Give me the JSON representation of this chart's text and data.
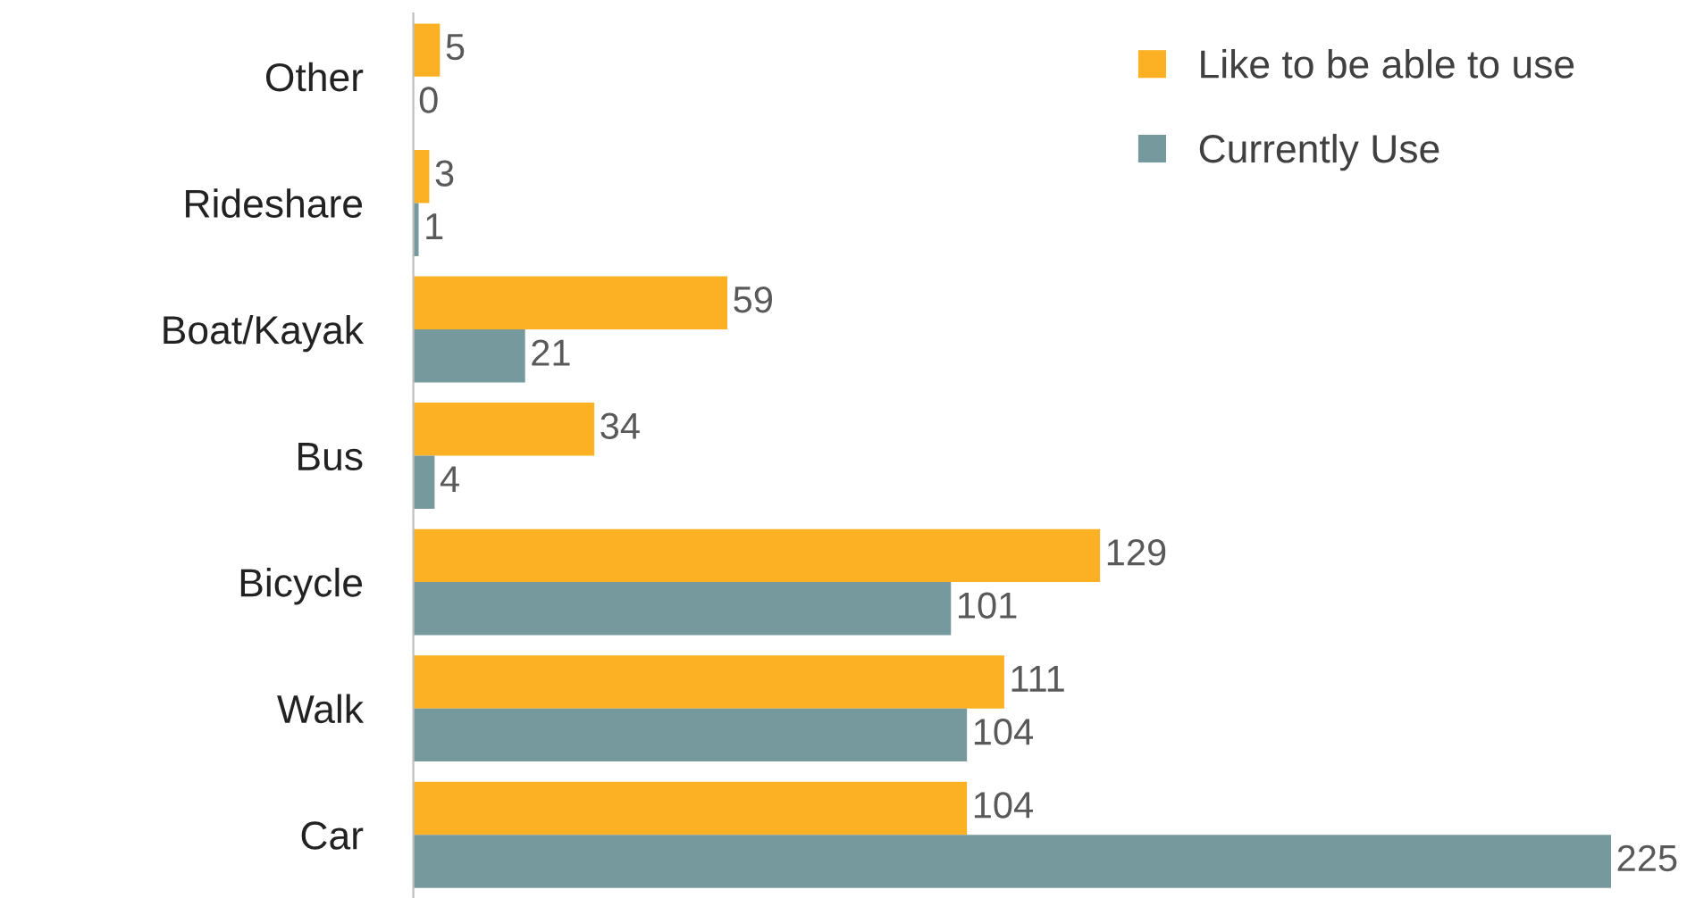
{
  "chart_data": {
    "type": "bar",
    "orientation": "horizontal",
    "categories": [
      "Other",
      "Rideshare",
      "Boat/Kayak",
      "Bus",
      "Bicycle",
      "Walk",
      "Car"
    ],
    "series": [
      {
        "name": "Like to be able to use",
        "color": "#fbb123",
        "values": [
          5,
          3,
          59,
          34,
          129,
          111,
          104
        ]
      },
      {
        "name": "Currently Use",
        "color": "#76999e",
        "values": [
          0,
          1,
          21,
          4,
          101,
          104,
          225
        ]
      }
    ],
    "data_labels": true,
    "legend": "top right",
    "grid": false
  }
}
